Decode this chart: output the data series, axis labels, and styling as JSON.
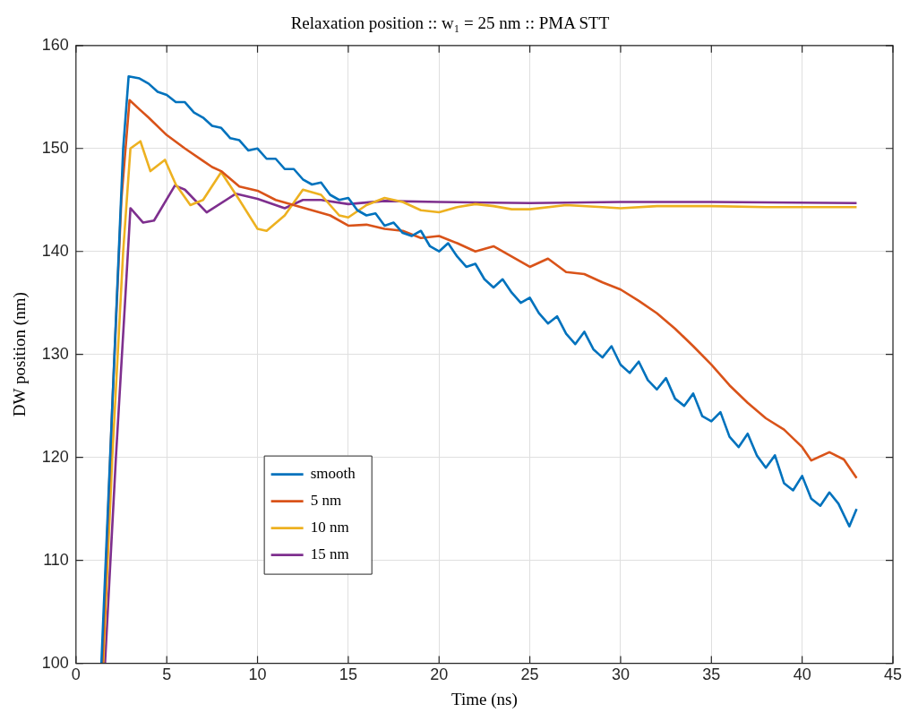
{
  "chart_data": {
    "type": "line",
    "title": "Relaxation position :: w₁ = 25 nm :: PMA STT",
    "xlabel": "Time (ns)",
    "ylabel": "DW position (nm)",
    "xlim": [
      0,
      45
    ],
    "xticks": [
      0,
      5,
      10,
      15,
      20,
      25,
      30,
      35,
      40,
      45
    ],
    "ylim": [
      100,
      160
    ],
    "yticks": [
      100,
      110,
      120,
      130,
      140,
      150,
      160
    ],
    "grid": true,
    "legend": "bottom left",
    "marker": "none",
    "line_style": "solid",
    "series": [
      {
        "name": "smooth",
        "color": "#0072bd",
        "x": [
          1.4,
          2.0,
          2.6,
          2.9,
          3.5,
          4.0,
          4.5,
          5.0,
          5.5,
          6.0,
          6.5,
          7.0,
          7.5,
          8.0,
          8.5,
          9.0,
          9.5,
          10,
          10.5,
          11,
          11.5,
          12,
          12.5,
          13,
          13.5,
          14,
          14.5,
          15,
          15.5,
          16,
          16.5,
          17,
          17.5,
          18,
          18.5,
          19,
          19.5,
          20,
          20.5,
          21,
          21.5,
          22,
          22.5,
          23,
          23.5,
          24,
          24.5,
          25,
          25.5,
          26,
          26.5,
          27,
          27.5,
          28,
          28.5,
          29,
          29.5,
          30,
          30.5,
          31,
          31.5,
          32,
          32.5,
          33,
          33.5,
          34,
          34.5,
          35,
          35.5,
          36,
          36.5,
          37,
          37.5,
          38,
          38.5,
          39,
          39.5,
          40,
          40.5,
          41,
          41.5,
          42,
          42.6,
          43
        ],
        "values": [
          100,
          125,
          150,
          157,
          156.8,
          156.3,
          155.5,
          155.2,
          154.5,
          154.5,
          153.5,
          153,
          152.2,
          152,
          151,
          150.8,
          149.8,
          150,
          149,
          149,
          148,
          148,
          147,
          146.5,
          146.7,
          145.5,
          145,
          145.2,
          144,
          143.5,
          143.7,
          142.5,
          142.8,
          141.8,
          141.5,
          142,
          140.5,
          140,
          140.8,
          139.5,
          138.5,
          138.8,
          137.3,
          136.5,
          137.3,
          136,
          135,
          135.5,
          134,
          133,
          133.7,
          132,
          131,
          132.2,
          130.5,
          129.7,
          130.8,
          129,
          128.2,
          129.3,
          127.5,
          126.6,
          127.7,
          125.7,
          125,
          126.2,
          124,
          123.5,
          124.4,
          122,
          121,
          122.3,
          120.2,
          119,
          120.2,
          117.5,
          116.8,
          118.2,
          116,
          115.3,
          116.6,
          115.5,
          113.3,
          115
        ]
      },
      {
        "name": "5 nm",
        "color": "#d95319",
        "x": [
          1.45,
          2.0,
          2.5,
          2.95,
          3.5,
          4,
          5,
          6,
          7,
          7.5,
          8,
          9,
          10,
          11,
          12,
          13,
          14,
          15,
          16,
          17,
          18,
          19,
          20,
          21,
          22,
          23,
          24,
          25,
          26,
          27,
          28,
          29,
          30,
          31,
          32,
          33,
          34,
          35,
          36,
          37,
          38,
          39,
          40,
          40.5,
          41.5,
          42.3,
          43
        ],
        "values": [
          100,
          125,
          145,
          154.7,
          153.8,
          153,
          151.3,
          150,
          148.8,
          148.2,
          147.8,
          146.3,
          145.9,
          145,
          144.5,
          144,
          143.5,
          142.5,
          142.6,
          142.2,
          142,
          141.3,
          141.5,
          140.8,
          140,
          140.5,
          139.5,
          138.5,
          139.3,
          138,
          137.8,
          137,
          136.3,
          135.2,
          134,
          132.5,
          130.8,
          129,
          127,
          125.3,
          123.8,
          122.7,
          121,
          119.7,
          120.5,
          119.8,
          118
        ]
      },
      {
        "name": "10 nm",
        "color": "#edb120",
        "x": [
          1.5,
          2.0,
          2.6,
          3.0,
          3.55,
          4.1,
          4.9,
          5.5,
          6.3,
          7.0,
          8.0,
          9.0,
          10.0,
          10.5,
          11.5,
          12.5,
          13.5,
          14.5,
          15,
          16,
          17,
          18,
          19,
          20,
          21,
          22,
          23,
          24,
          25,
          27,
          29,
          30,
          32,
          35,
          38,
          41,
          43
        ],
        "values": [
          100,
          120,
          140,
          150,
          150.7,
          147.8,
          148.9,
          146.5,
          144.5,
          145,
          147.7,
          145,
          142.2,
          142,
          143.5,
          146,
          145.5,
          143.5,
          143.3,
          144.5,
          145.2,
          144.8,
          144,
          143.8,
          144.3,
          144.6,
          144.4,
          144.1,
          144.1,
          144.5,
          144.3,
          144.2,
          144.4,
          144.4,
          144.3,
          144.3,
          144.3
        ]
      },
      {
        "name": "15 nm",
        "color": "#7e2f8e",
        "x": [
          1.6,
          2.2,
          2.7,
          3.0,
          3.7,
          4.3,
          5.45,
          6,
          7.2,
          8.8,
          10,
          11.5,
          12.5,
          13.5,
          15,
          17,
          20,
          25,
          30,
          35,
          43
        ],
        "values": [
          100,
          120,
          135,
          144.2,
          142.8,
          143,
          146.4,
          146,
          143.8,
          145.6,
          145.1,
          144.2,
          145,
          145,
          144.6,
          144.9,
          144.8,
          144.7,
          144.8,
          144.8,
          144.7
        ]
      }
    ]
  }
}
